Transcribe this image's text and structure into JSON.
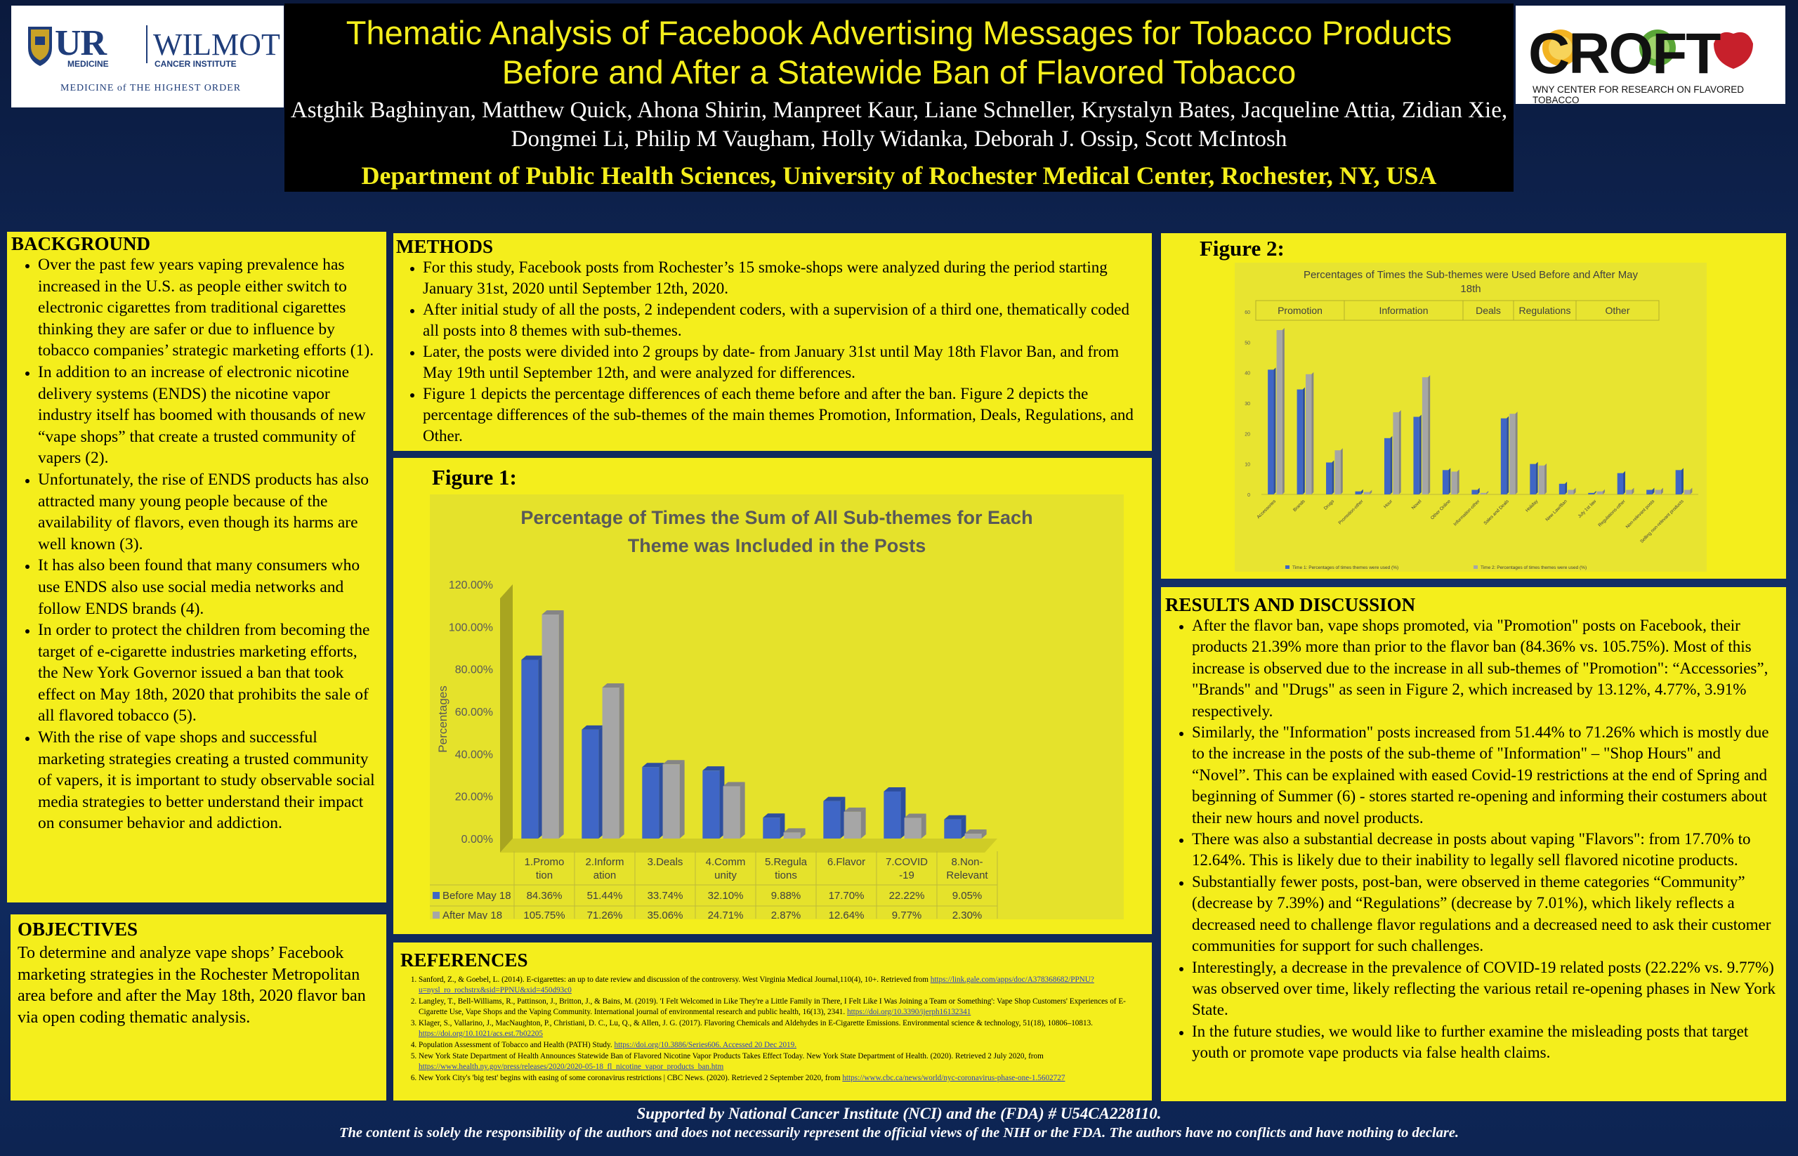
{
  "header": {
    "title": "Thematic Analysis of Facebook Advertising Messages for Tobacco Products\nBefore and After a Statewide Ban of Flavored Tobacco",
    "authors": "Astghik Baghinyan, Matthew Quick, Ahona Shirin, Manpreet Kaur, Liane Schneller, Krystalyn Bates, Jacqueline Attia, Zidian Xie,\nDongmei Li, Philip M Vaugham, Holly Widanka, Deborah J. Ossip, Scott McIntosh",
    "department": "Department of Public Health Sciences, University of Rochester Medical Center, Rochester, NY, USA"
  },
  "logo_ur": {
    "ur": "UR",
    "ur_sub": "MEDICINE",
    "wilmot": "WILMOT",
    "wilmot_sub": "CANCER INSTITUTE",
    "tagline": "MEDICINE of THE HIGHEST ORDER"
  },
  "logo_croft": {
    "name": "CROFT",
    "sub": "WNY CENTER FOR RESEARCH ON FLAVORED TOBACCO"
  },
  "background": {
    "title": "BACKGROUND",
    "bullets": [
      "Over the past few years vaping prevalence has increased in the U.S. as people either switch to electronic cigarettes from traditional cigarettes thinking they are safer or due to influence by tobacco companies’ strategic marketing efforts (1).",
      "In addition to an increase of electronic nicotine delivery systems (ENDS) the nicotine vapor industry itself has boomed with thousands of new “vape shops” that create a trusted community of vapers (2).",
      "Unfortunately, the rise of ENDS products has also attracted many young people because of the availability of flavors, even though its harms are well known (3).",
      "It has also been found that many consumers who use ENDS also use social media networks and follow ENDS brands (4).",
      "In order to protect the children from becoming the target of e-cigarette industries marketing efforts, the New York Governor issued a ban that took effect on May 18th, 2020 that prohibits the sale of all flavored tobacco (5).",
      "With the rise of vape shops and successful marketing strategies creating a trusted community of vapers, it is important to study observable social media strategies to better understand their impact on consumer behavior and addiction."
    ]
  },
  "objectives": {
    "title": "OBJECTIVES",
    "text": "To determine and analyze vape shops’ Facebook marketing strategies in the Rochester Metropolitan area before and after the May 18th, 2020 flavor ban via open coding thematic analysis."
  },
  "methods": {
    "title": "METHODS",
    "bullets": [
      "For this study, Facebook posts from Rochester’s 15 smoke-shops were analyzed during the period starting January 31st, 2020 until September 12th, 2020.",
      "After initial study of all the posts, 2 independent coders, with a supervision of a third one, thematically coded all posts into 8 themes with sub-themes.",
      "Later, the posts were divided into 2 groups by date- from January 31st until May 18th Flavor Ban, and from May 19th until September 12th, and were analyzed for differences.",
      "Figure 1 depicts the percentage differences of each theme before and after the ban. Figure 2 depicts the percentage differences of the sub-themes of the main themes Promotion, Information, Deals, Regulations, and Other."
    ]
  },
  "figure1": {
    "label": "Figure 1:",
    "title_line1": "Percentage of Times the Sum of All Sub-themes for Each",
    "title_line2": "Theme was Included in the Posts",
    "ylabel": "Percentages",
    "yticks": [
      "0.00%",
      "20.00%",
      "40.00%",
      "60.00%",
      "80.00%",
      "100.00%",
      "120.00%"
    ],
    "cat_line1": [
      "1.Promo",
      "2.Inform",
      "3.Deals",
      "4.Comm",
      "5.Regula",
      "6.Flavor",
      "7.COVID",
      "8.Non-"
    ],
    "cat_line2": [
      "tion",
      "ation",
      "",
      "unity",
      "tions",
      "",
      "-19",
      "Relevant"
    ],
    "series1_name": "Before May 18",
    "series2_name": "After May 18",
    "series1_labels": [
      "84.36%",
      "51.44%",
      "33.74%",
      "32.10%",
      "9.88%",
      "17.70%",
      "22.22%",
      "9.05%"
    ],
    "series2_labels": [
      "105.75%",
      "71.26%",
      "35.06%",
      "24.71%",
      "2.87%",
      "12.64%",
      "9.77%",
      "2.30%"
    ]
  },
  "figure2": {
    "label": "Figure 2:",
    "title_line1": "Percentages of Times the Sub-themes were Used Before and After May",
    "title_line2": "18th",
    "groups": [
      "Promotion",
      "Information",
      "Deals",
      "Regulations",
      "Other"
    ],
    "yticks": [
      "0",
      "10",
      "20",
      "30",
      "40",
      "50",
      "60"
    ],
    "subthemes": [
      "Accessories",
      "Brands",
      "Drugs",
      "Promotion-other",
      "Hour",
      "Novel",
      "Other Online",
      "Information-other",
      "Sales and Deals",
      "Holiday",
      "New Law/Ban",
      "July 1st law",
      "Regulations-other",
      "Non-relevant posts",
      "Selling non-relevant products"
    ],
    "legend1": "Time 1: Percentages of times themes were used (%)",
    "legend2": "Time 2: Percentages of times themes were used (%)"
  },
  "results": {
    "title": "RESULTS AND DISCUSSION",
    "bullets": [
      "After the flavor ban, vape shops promoted, via \"Promotion\" posts on Facebook, their products 21.39% more than prior to the flavor ban (84.36% vs. 105.75%). Most of this increase is observed due to the increase in all sub-themes of \"Promotion\": “Accessories”, \"Brands\" and \"Drugs\" as seen in Figure 2, which increased by 13.12%, 4.77%, 3.91% respectively.",
      "Similarly, the \"Information\" posts increased from 51.44% to 71.26% which is mostly due to the increase in the posts of the sub-theme of \"Information\" – \"Shop Hours\" and “Novel”. This can be explained with eased Covid-19 restrictions at the end of Spring and beginning of Summer (6) - stores started re-opening and informing their costumers about their new hours and novel products.",
      "There was also a substantial decrease in posts about vaping \"Flavors\": from 17.70% to 12.64%. This is likely due to their inability to legally sell flavored nicotine products.",
      "Substantially fewer posts, post-ban, were observed in theme categories “Community” (decrease by 7.39%) and “Regulations” (decrease by 7.01%), which likely reflects a decreased need to challenge flavor regulations and a decreased need to ask their customer communities for support for such challenges.",
      "Interestingly, a decrease in the prevalence of COVID-19 related posts (22.22% vs. 9.77%) was observed over time, likely reflecting the various retail re-opening phases in New York State.",
      "In the future studies, we would like to further examine the misleading posts that target youth or promote vape products via false health claims."
    ]
  },
  "references": {
    "title": "REFERENCES",
    "items": [
      {
        "text": "Sanford, Z., & Goebel, L. (2014). E-cigarettes: an up to date review and discussion of the controversy. West Virginia Medical Journal,110(4), 10+. Retrieved from ",
        "link": "https://link.gale.com/apps/doc/A378368682/PPNU?u=nysl_ro_rochstrx&sid=PPNU&xid=450d93c0"
      },
      {
        "text": "Langley, T., Bell-Williams, R., Pattinson, J., Britton, J., & Bains, M. (2019). 'I Felt Welcomed in Like They're a Little Family in There, I Felt Like I Was Joining a Team or Something': Vape Shop Customers' Experiences of E-Cigarette Use, Vape Shops and the Vaping Community. International journal of environmental research and public health, 16(13), 2341. ",
        "link": "https://doi.org/10.3390/ijerph16132341"
      },
      {
        "text": "Klager, S., Vallarino, J., MacNaughton, P., Christiani, D. C., Lu, Q., & Allen, J. G. (2017). Flavoring Chemicals and Aldehydes in E-Cigarette Emissions. Environmental science & technology, 51(18), 10806–10813. ",
        "link": "https://doi.org/10.1021/acs.est.7b02205"
      },
      {
        "text": "Population Assessment of Tobacco and Health (PATH) Study. ",
        "link": "https://doi.org/10.3886/Series606. Accessed 20 Dec 2019."
      },
      {
        "text": "New York State Department of Health Announces Statewide Ban of Flavored Nicotine Vapor Products Takes Effect Today. New York State Department of Health. (2020). Retrieved 2 July 2020, from ",
        "link": "https://www.health.ny.gov/press/releases/2020/2020-05-18_fl_nicotine_vapor_products_ban.htm"
      },
      {
        "text": "New York City's 'big test' begins with easing of some coronavirus restrictions | CBC News. (2020). Retrieved 2 September 2020, from ",
        "link": "https://www.cbc.ca/news/world/nyc-coronavirus-phase-one-1.5602727"
      }
    ]
  },
  "footer": {
    "line1": "Supported by National Cancer Institute (NCI) and the (FDA) # U54CA228110.",
    "line2": "The content is solely the responsibility of the authors and does not necessarily represent the official views of the NIH or the FDA. The authors have no conflicts and have nothing to declare."
  },
  "colors": {
    "panel_yellow": "#f4ee1c",
    "background_navy": "#0d2452",
    "series_before": "#3f66c6",
    "series_after": "#a6a6a6",
    "title_yellow": "#f4ee1c"
  },
  "chart_data": [
    {
      "type": "bar",
      "title": "Percentage of Times the Sum of All Sub-themes for Each Theme was Included in the Posts",
      "ylabel": "Percentages",
      "ylim": [
        0,
        120
      ],
      "categories": [
        "1.Promotion",
        "2.Information",
        "3.Deals",
        "4.Community",
        "5.Regulations",
        "6.Flavor",
        "7.COVID-19",
        "8.Non-Relevant"
      ],
      "series": [
        {
          "name": "Before May 18",
          "values": [
            84.36,
            51.44,
            33.74,
            32.1,
            9.88,
            17.7,
            22.22,
            9.05
          ]
        },
        {
          "name": "After May 18",
          "values": [
            105.75,
            71.26,
            35.06,
            24.71,
            2.87,
            12.64,
            9.77,
            2.3
          ]
        }
      ],
      "grid": false,
      "legend": "data-table"
    },
    {
      "type": "bar",
      "title": "Percentages of Times the Sub-themes were Used Before and After May 18th",
      "ylim": [
        0,
        60
      ],
      "categories": [
        "Accessories",
        "Brands",
        "Drugs",
        "Promotion-other",
        "Hour",
        "Novel",
        "Other Online",
        "Information-other",
        "Sales and Deals",
        "Holiday",
        "New Law/Ban",
        "July 1st law",
        "Regulations-other",
        "Non-relevant posts",
        "Selling non-relevant products"
      ],
      "series": [
        {
          "name": "Time 1: Percentages of times themes were used (%)",
          "values": [
            41,
            34.5,
            10.5,
            1,
            18.5,
            25.5,
            8,
            1.5,
            25,
            10,
            3.5,
            0.5,
            7,
            1.5,
            8
          ]
        },
        {
          "name": "Time 2: Percentages of times themes were used (%)",
          "values": [
            54,
            39.5,
            14.5,
            0.8,
            27,
            38.5,
            7.5,
            0.5,
            26.5,
            9.5,
            1.5,
            1,
            1.5,
            1.5,
            1.5
          ]
        }
      ],
      "grid": false,
      "legend": "bottom"
    }
  ]
}
